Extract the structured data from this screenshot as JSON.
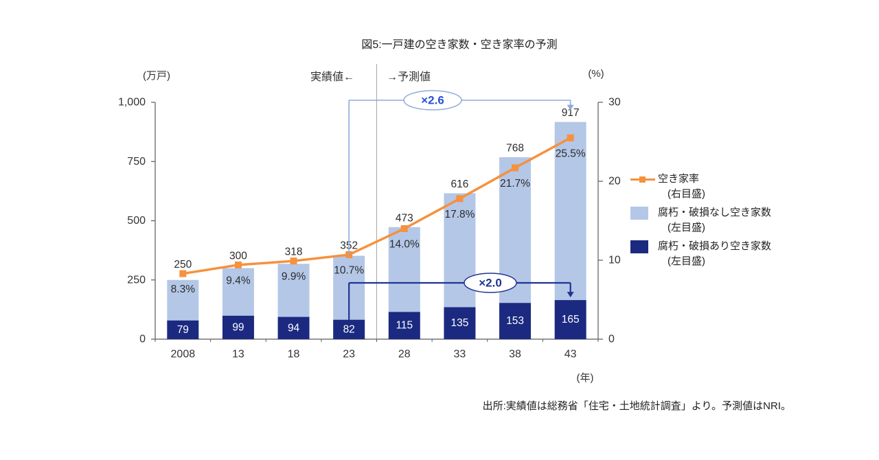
{
  "title": "図5:一戸建の空き家数・空き家率の予測",
  "header": {
    "actual": "実績値←",
    "forecast": "→予測値"
  },
  "axis_units": {
    "left": "(万戸)",
    "right": "(%)",
    "x": "(年)"
  },
  "source": "出所:実績値は総務省「住宅・土地統計調査」より。予測値はNRI。",
  "colors": {
    "bar_light": "#b4c7e7",
    "bar_dark": "#1b2a80",
    "rate_line": "#f6913d",
    "annotation_blue_line": "#8faadc",
    "annotation_blue_text": "#2850d8",
    "annotation_navy": "#1f3394",
    "axis": "#595959",
    "divider": "#a6a6a6"
  },
  "legend": [
    {
      "type": "line",
      "label": "空き家率",
      "sublabel": "(右目盛)",
      "color": "#f6913d"
    },
    {
      "type": "box",
      "label": "腐朽・破損なし空き家数",
      "sublabel": "(左目盛)",
      "color": "#b4c7e7"
    },
    {
      "type": "box",
      "label": "腐朽・破損あり空き家数",
      "sublabel": "(左目盛)",
      "color": "#1b2a80"
    }
  ],
  "chart_data": {
    "type": "bar",
    "subtype": "stacked-bar-with-line",
    "title": "図5:一戸建の空き家数・空き家率の予測",
    "categories": [
      "2008",
      "13",
      "18",
      "23",
      "28",
      "33",
      "38",
      "43"
    ],
    "x_unit": "(年)",
    "left_axis": {
      "unit": "(万戸)",
      "min": 0,
      "max": 1000,
      "ticks": [
        0,
        250,
        500,
        750,
        1000
      ],
      "tick_labels": [
        "0",
        "250",
        "500",
        "750",
        "1,000"
      ]
    },
    "right_axis": {
      "unit": "(%)",
      "min": 0,
      "max": 30,
      "ticks": [
        0,
        10,
        20,
        30
      ],
      "tick_labels": [
        "0",
        "10",
        "20",
        "30"
      ]
    },
    "series": [
      {
        "name": "腐朽・破損あり空き家数(左目盛)",
        "type": "bar",
        "axis": "left",
        "color": "#1b2a80",
        "values": [
          79,
          99,
          94,
          82,
          115,
          135,
          153,
          165
        ]
      },
      {
        "name": "腐朽・破損なし空き家数(左目盛)",
        "type": "bar",
        "axis": "left",
        "color": "#b4c7e7",
        "values": [
          171,
          201,
          224,
          270,
          358,
          481,
          615,
          752
        ]
      },
      {
        "name": "空き家率(右目盛)",
        "type": "line",
        "axis": "right",
        "color": "#f6913d",
        "values": [
          8.3,
          9.4,
          9.9,
          10.7,
          14.0,
          17.8,
          21.7,
          25.5
        ]
      }
    ],
    "stack_totals": [
      250,
      300,
      318,
      352,
      473,
      616,
      768,
      917
    ],
    "rate_labels": [
      "8.3%",
      "9.4%",
      "9.9%",
      "10.7%",
      "14.0%",
      "17.8%",
      "21.7%",
      "25.5%"
    ],
    "dark_labels": [
      "79",
      "99",
      "94",
      "82",
      "115",
      "135",
      "153",
      "165"
    ],
    "divider_after_index": 3,
    "annotations": [
      {
        "text": "×2.6",
        "from_index": 3,
        "to_index": 7,
        "attach": "total",
        "line_color": "#8faadc",
        "text_color": "#2850d8"
      },
      {
        "text": "×2.0",
        "from_index": 3,
        "to_index": 7,
        "attach": "dark",
        "line_color": "#1f3394",
        "text_color": "#1f3394"
      }
    ],
    "grid": false,
    "legend_position": "right"
  }
}
